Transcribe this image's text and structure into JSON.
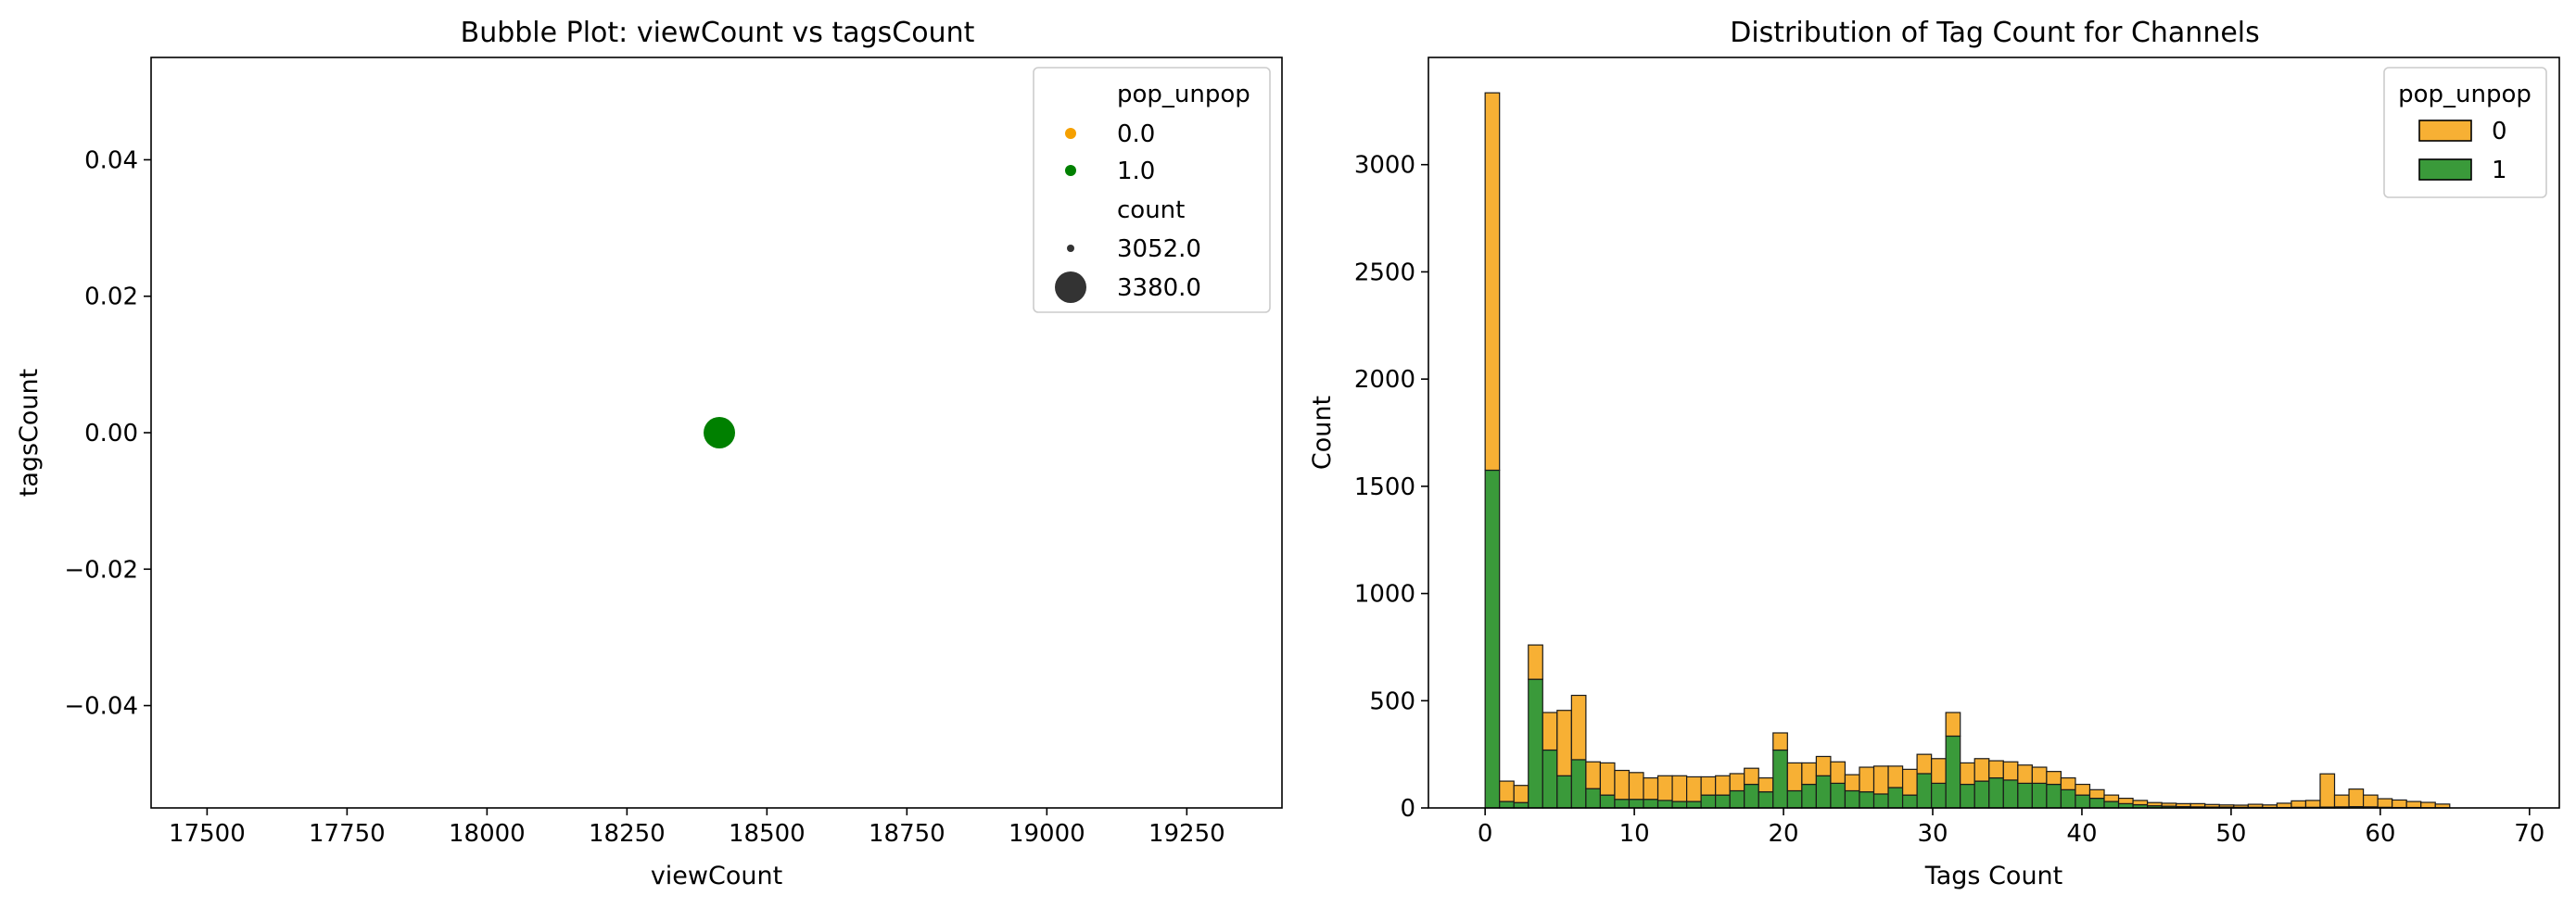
{
  "chart_data": [
    {
      "type": "scatter",
      "title": "Bubble Plot: viewCount vs tagsCount",
      "xlabel": "viewCount",
      "ylabel": "tagsCount",
      "xlim": [
        17400,
        19420
      ],
      "ylim": [
        -0.055,
        0.055
      ],
      "xticks": [
        17500,
        17750,
        18000,
        18250,
        18500,
        18750,
        19000,
        19250
      ],
      "yticks": [
        0.04,
        0.02,
        0.0,
        -0.02,
        -0.04
      ],
      "ytick_labels": [
        "0.04",
        "0.02",
        "0.00",
        "−0.02",
        "−0.04"
      ],
      "series": [
        {
          "name": "0.0",
          "color": "#f5a000",
          "points": [
            {
              "x": 18415,
              "y": 0.0,
              "count": 3052.0
            }
          ]
        },
        {
          "name": "1.0",
          "color": "#008000",
          "points": [
            {
              "x": 18415,
              "y": 0.0,
              "count": 3380.0
            }
          ]
        }
      ],
      "legend": {
        "placement": "upper-right",
        "hue_title": "pop_unpop",
        "hue_entries": [
          {
            "label": "0.0",
            "color": "#f5a000"
          },
          {
            "label": "1.0",
            "color": "#008000"
          }
        ],
        "size_title": "count",
        "size_entries": [
          {
            "label": "3052.0",
            "size": "small"
          },
          {
            "label": "3380.0",
            "size": "large"
          }
        ]
      },
      "grid": false
    },
    {
      "type": "bar",
      "subtype": "stacked-histogram",
      "title": "Distribution of Tag Count for Channels",
      "xlabel": "Tags Count",
      "ylabel": "Count",
      "xlim": [
        -3.8,
        72.0
      ],
      "ylim": [
        0,
        3500
      ],
      "xticks": [
        0,
        10,
        20,
        30,
        40,
        50,
        60,
        70
      ],
      "yticks": [
        0,
        500,
        1000,
        1500,
        2000,
        2500,
        3000
      ],
      "bin_width": 0.965,
      "bin_start": 0,
      "series": [
        {
          "name": "1",
          "color": "#3a9a3a",
          "values": [
            1575,
            30,
            25,
            600,
            270,
            150,
            225,
            90,
            60,
            40,
            40,
            40,
            35,
            30,
            30,
            60,
            60,
            80,
            110,
            75,
            270,
            80,
            110,
            150,
            115,
            80,
            75,
            65,
            95,
            60,
            160,
            115,
            335,
            110,
            125,
            140,
            130,
            115,
            115,
            110,
            85,
            60,
            45,
            30,
            20,
            15,
            10,
            8,
            6,
            5,
            4,
            4,
            3,
            3,
            2,
            2,
            3,
            3,
            4,
            5,
            6,
            5,
            3,
            2,
            2,
            1,
            1,
            0,
            0,
            0,
            0,
            0,
            0
          ]
        },
        {
          "name": "0",
          "color": "#f7b034",
          "values": [
            1760,
            95,
            80,
            160,
            175,
            305,
            300,
            125,
            150,
            135,
            125,
            100,
            115,
            120,
            115,
            85,
            90,
            80,
            75,
            65,
            80,
            130,
            100,
            90,
            100,
            75,
            115,
            130,
            100,
            120,
            90,
            115,
            110,
            100,
            105,
            80,
            85,
            85,
            75,
            60,
            55,
            50,
            40,
            30,
            25,
            20,
            15,
            14,
            14,
            15,
            12,
            10,
            10,
            14,
            12,
            20,
            30,
            32,
            155,
            55,
            82,
            55,
            40,
            35,
            28,
            25,
            17,
            0,
            0,
            0,
            0,
            0,
            0
          ]
        }
      ],
      "legend": {
        "placement": "upper-right",
        "title": "pop_unpop",
        "entries": [
          {
            "label": "0",
            "color": "#f7b034"
          },
          {
            "label": "1",
            "color": "#3a9a3a"
          }
        ]
      },
      "grid": false
    }
  ]
}
